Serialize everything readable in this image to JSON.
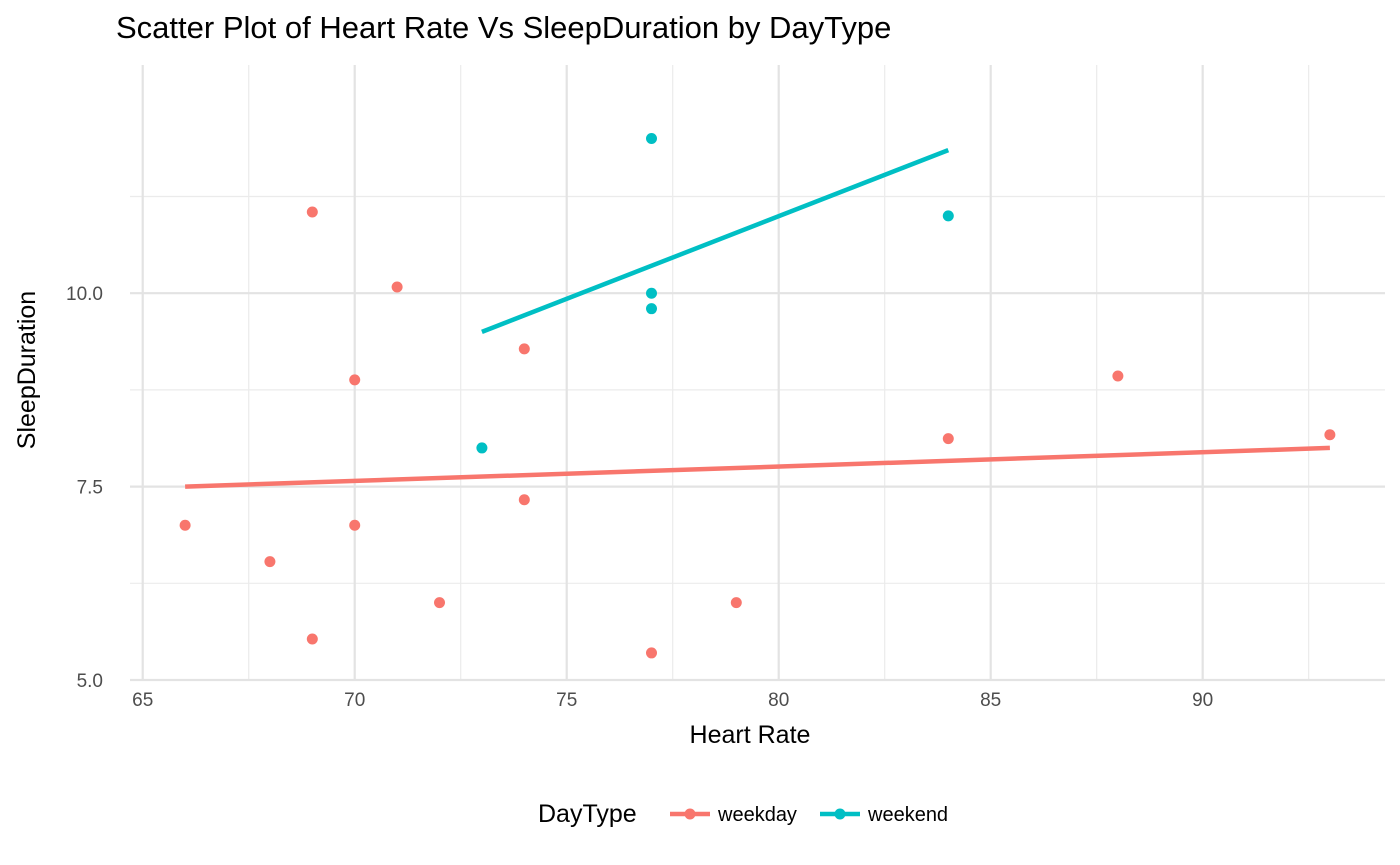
{
  "chart_data": {
    "type": "scatter",
    "title": "Scatter Plot of Heart Rate Vs SleepDuration by DayType",
    "xlabel": "Heart Rate",
    "ylabel": "SleepDuration",
    "xlim": [
      64.7,
      94.3
    ],
    "ylim": [
      5.0,
      12.95
    ],
    "x_ticks": [
      65,
      70,
      75,
      80,
      85,
      90
    ],
    "x_tick_labels": [
      "65",
      "70",
      "75",
      "80",
      "85",
      "90"
    ],
    "y_ticks": [
      5.0,
      7.5,
      10.0
    ],
    "y_tick_labels": [
      "5.0",
      "7.5",
      "10.0"
    ],
    "grid": true,
    "legend": {
      "title": "DayType",
      "position": "bottom"
    },
    "series": [
      {
        "name": "weekday",
        "color": "#F8766D",
        "points": [
          [
            66,
            7.0
          ],
          [
            68,
            6.53
          ],
          [
            69,
            5.53
          ],
          [
            69,
            11.05
          ],
          [
            70,
            7.0
          ],
          [
            70,
            8.88
          ],
          [
            71,
            10.08
          ],
          [
            72,
            6.0
          ],
          [
            74,
            7.33
          ],
          [
            74,
            9.28
          ],
          [
            77,
            5.35
          ],
          [
            79,
            6.0
          ],
          [
            84,
            8.12
          ],
          [
            88,
            8.93
          ],
          [
            93,
            8.17
          ]
        ],
        "trend": {
          "x": [
            66,
            93
          ],
          "y": [
            7.5,
            8.0
          ]
        }
      },
      {
        "name": "weekend",
        "color": "#00BFC4",
        "points": [
          [
            73,
            8.0
          ],
          [
            77,
            9.8
          ],
          [
            77,
            10.0
          ],
          [
            77,
            12.0
          ],
          [
            84,
            11.0
          ]
        ],
        "trend": {
          "x": [
            73,
            84
          ],
          "y": [
            9.5,
            11.85
          ]
        }
      }
    ]
  }
}
